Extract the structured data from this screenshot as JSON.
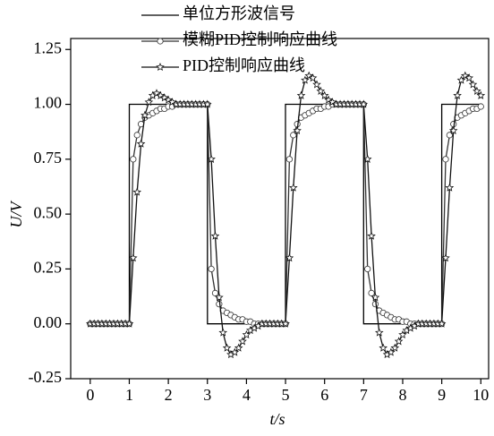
{
  "chart_data": {
    "type": "line",
    "xlabel": "t/s",
    "ylabel": "U/V",
    "xlim": [
      -0.5,
      10.2
    ],
    "ylim": [
      -0.25,
      1.3
    ],
    "xticks": [
      0,
      1,
      2,
      3,
      4,
      5,
      6,
      7,
      8,
      9,
      10
    ],
    "yticks": [
      {
        "value": -0.25,
        "label": "-0.25"
      },
      {
        "value": 0,
        "label": "0.00"
      },
      {
        "value": 0.25,
        "label": "0.25"
      },
      {
        "value": 0.5,
        "label": "0.50"
      },
      {
        "value": 0.75,
        "label": "0.75"
      },
      {
        "value": 1,
        "label": "1.00"
      },
      {
        "value": 1.25,
        "label": "1.25"
      }
    ],
    "series": [
      {
        "name": "单位方形波信号",
        "color": "#000000",
        "x": [
          0,
          1,
          1,
          3,
          3,
          5,
          5,
          7,
          7,
          9,
          9,
          10
        ],
        "values": [
          0,
          0,
          1,
          1,
          0,
          0,
          1,
          1,
          0,
          0,
          1,
          1
        ]
      },
      {
        "name": "模糊PID控制响应曲线",
        "color": "#333333",
        "marker": "circle",
        "x": [
          0,
          0.1,
          0.2,
          0.3,
          0.4,
          0.5,
          0.6,
          0.7,
          0.8,
          0.9,
          1,
          1.1,
          1.2,
          1.3,
          1.4,
          1.5,
          1.6,
          1.7,
          1.8,
          1.9,
          2,
          2.1,
          2.2,
          2.3,
          2.4,
          2.5,
          2.6,
          2.7,
          2.8,
          2.9,
          3,
          3.1,
          3.2,
          3.3,
          3.4,
          3.5,
          3.6,
          3.7,
          3.8,
          3.9,
          4,
          4.1,
          4.2,
          4.3,
          4.4,
          4.5,
          4.6,
          4.7,
          4.8,
          4.9,
          5,
          5.1,
          5.2,
          5.3,
          5.4,
          5.5,
          5.6,
          5.7,
          5.8,
          5.9,
          6,
          6.1,
          6.2,
          6.3,
          6.4,
          6.5,
          6.6,
          6.7,
          6.8,
          6.9,
          7,
          7.1,
          7.2,
          7.3,
          7.4,
          7.5,
          7.6,
          7.7,
          7.8,
          7.9,
          8,
          8.1,
          8.2,
          8.3,
          8.4,
          8.5,
          8.6,
          8.7,
          8.8,
          8.9,
          9,
          9.1,
          9.2,
          9.3,
          9.4,
          9.5,
          9.6,
          9.7,
          9.8,
          9.9,
          10
        ],
        "values": [
          0,
          0,
          0,
          0,
          0,
          0,
          0,
          0,
          0,
          0,
          0,
          0.75,
          0.86,
          0.91,
          0.94,
          0.95,
          0.96,
          0.97,
          0.98,
          0.98,
          0.99,
          0.99,
          1,
          1,
          1,
          1,
          1,
          1,
          1,
          1,
          1,
          0.25,
          0.14,
          0.09,
          0.06,
          0.05,
          0.04,
          0.03,
          0.02,
          0.02,
          0.01,
          0.01,
          0,
          0,
          0,
          0,
          0,
          0,
          0,
          0,
          0,
          0.75,
          0.86,
          0.91,
          0.94,
          0.95,
          0.96,
          0.97,
          0.98,
          0.98,
          0.99,
          0.99,
          1,
          1,
          1,
          1,
          1,
          1,
          1,
          1,
          1,
          0.25,
          0.14,
          0.09,
          0.06,
          0.05,
          0.04,
          0.03,
          0.02,
          0.02,
          0.01,
          0.01,
          0,
          0,
          0,
          0,
          0,
          0,
          0,
          0,
          0,
          0.75,
          0.86,
          0.91,
          0.94,
          0.95,
          0.96,
          0.97,
          0.98,
          0.98,
          0.99
        ]
      },
      {
        "name": "PID控制响应曲线",
        "color": "#111111",
        "marker": "star",
        "x": [
          0,
          0.1,
          0.2,
          0.3,
          0.4,
          0.5,
          0.6,
          0.7,
          0.8,
          0.9,
          1,
          1.1,
          1.2,
          1.3,
          1.4,
          1.5,
          1.6,
          1.7,
          1.8,
          1.9,
          2,
          2.1,
          2.2,
          2.3,
          2.4,
          2.5,
          2.6,
          2.7,
          2.8,
          2.9,
          3,
          3.1,
          3.2,
          3.3,
          3.4,
          3.5,
          3.6,
          3.7,
          3.8,
          3.9,
          4,
          4.1,
          4.2,
          4.3,
          4.4,
          4.5,
          4.6,
          4.7,
          4.8,
          4.9,
          5,
          5.1,
          5.2,
          5.3,
          5.4,
          5.5,
          5.6,
          5.7,
          5.8,
          5.9,
          6,
          6.1,
          6.2,
          6.3,
          6.4,
          6.5,
          6.6,
          6.7,
          6.8,
          6.9,
          7,
          7.1,
          7.2,
          7.3,
          7.4,
          7.5,
          7.6,
          7.7,
          7.8,
          7.9,
          8,
          8.1,
          8.2,
          8.3,
          8.4,
          8.5,
          8.6,
          8.7,
          8.8,
          8.9,
          9,
          9.1,
          9.2,
          9.3,
          9.4,
          9.5,
          9.6,
          9.7,
          9.8,
          9.9,
          10
        ],
        "values": [
          0,
          0,
          0,
          0,
          0,
          0,
          0,
          0,
          0,
          0,
          0,
          0.3,
          0.6,
          0.82,
          0.95,
          1.01,
          1.04,
          1.05,
          1.04,
          1.03,
          1.02,
          1.01,
          1,
          1,
          1,
          1,
          1,
          1,
          1,
          1,
          1,
          0.75,
          0.4,
          0.12,
          -0.04,
          -0.11,
          -0.14,
          -0.13,
          -0.11,
          -0.08,
          -0.05,
          -0.03,
          -0.02,
          -0.01,
          0,
          0,
          0,
          0,
          0,
          0,
          0,
          0.3,
          0.62,
          0.88,
          1.04,
          1.11,
          1.13,
          1.12,
          1.09,
          1.06,
          1.04,
          1.02,
          1.01,
          1,
          1,
          1,
          1,
          1,
          1,
          1,
          1,
          0.75,
          0.4,
          0.12,
          -0.04,
          -0.11,
          -0.14,
          -0.13,
          -0.11,
          -0.08,
          -0.05,
          -0.03,
          -0.02,
          -0.01,
          0,
          0,
          0,
          0,
          0,
          0,
          0,
          0.3,
          0.62,
          0.88,
          1.04,
          1.11,
          1.13,
          1.12,
          1.09,
          1.06,
          1.04
        ]
      }
    ]
  }
}
